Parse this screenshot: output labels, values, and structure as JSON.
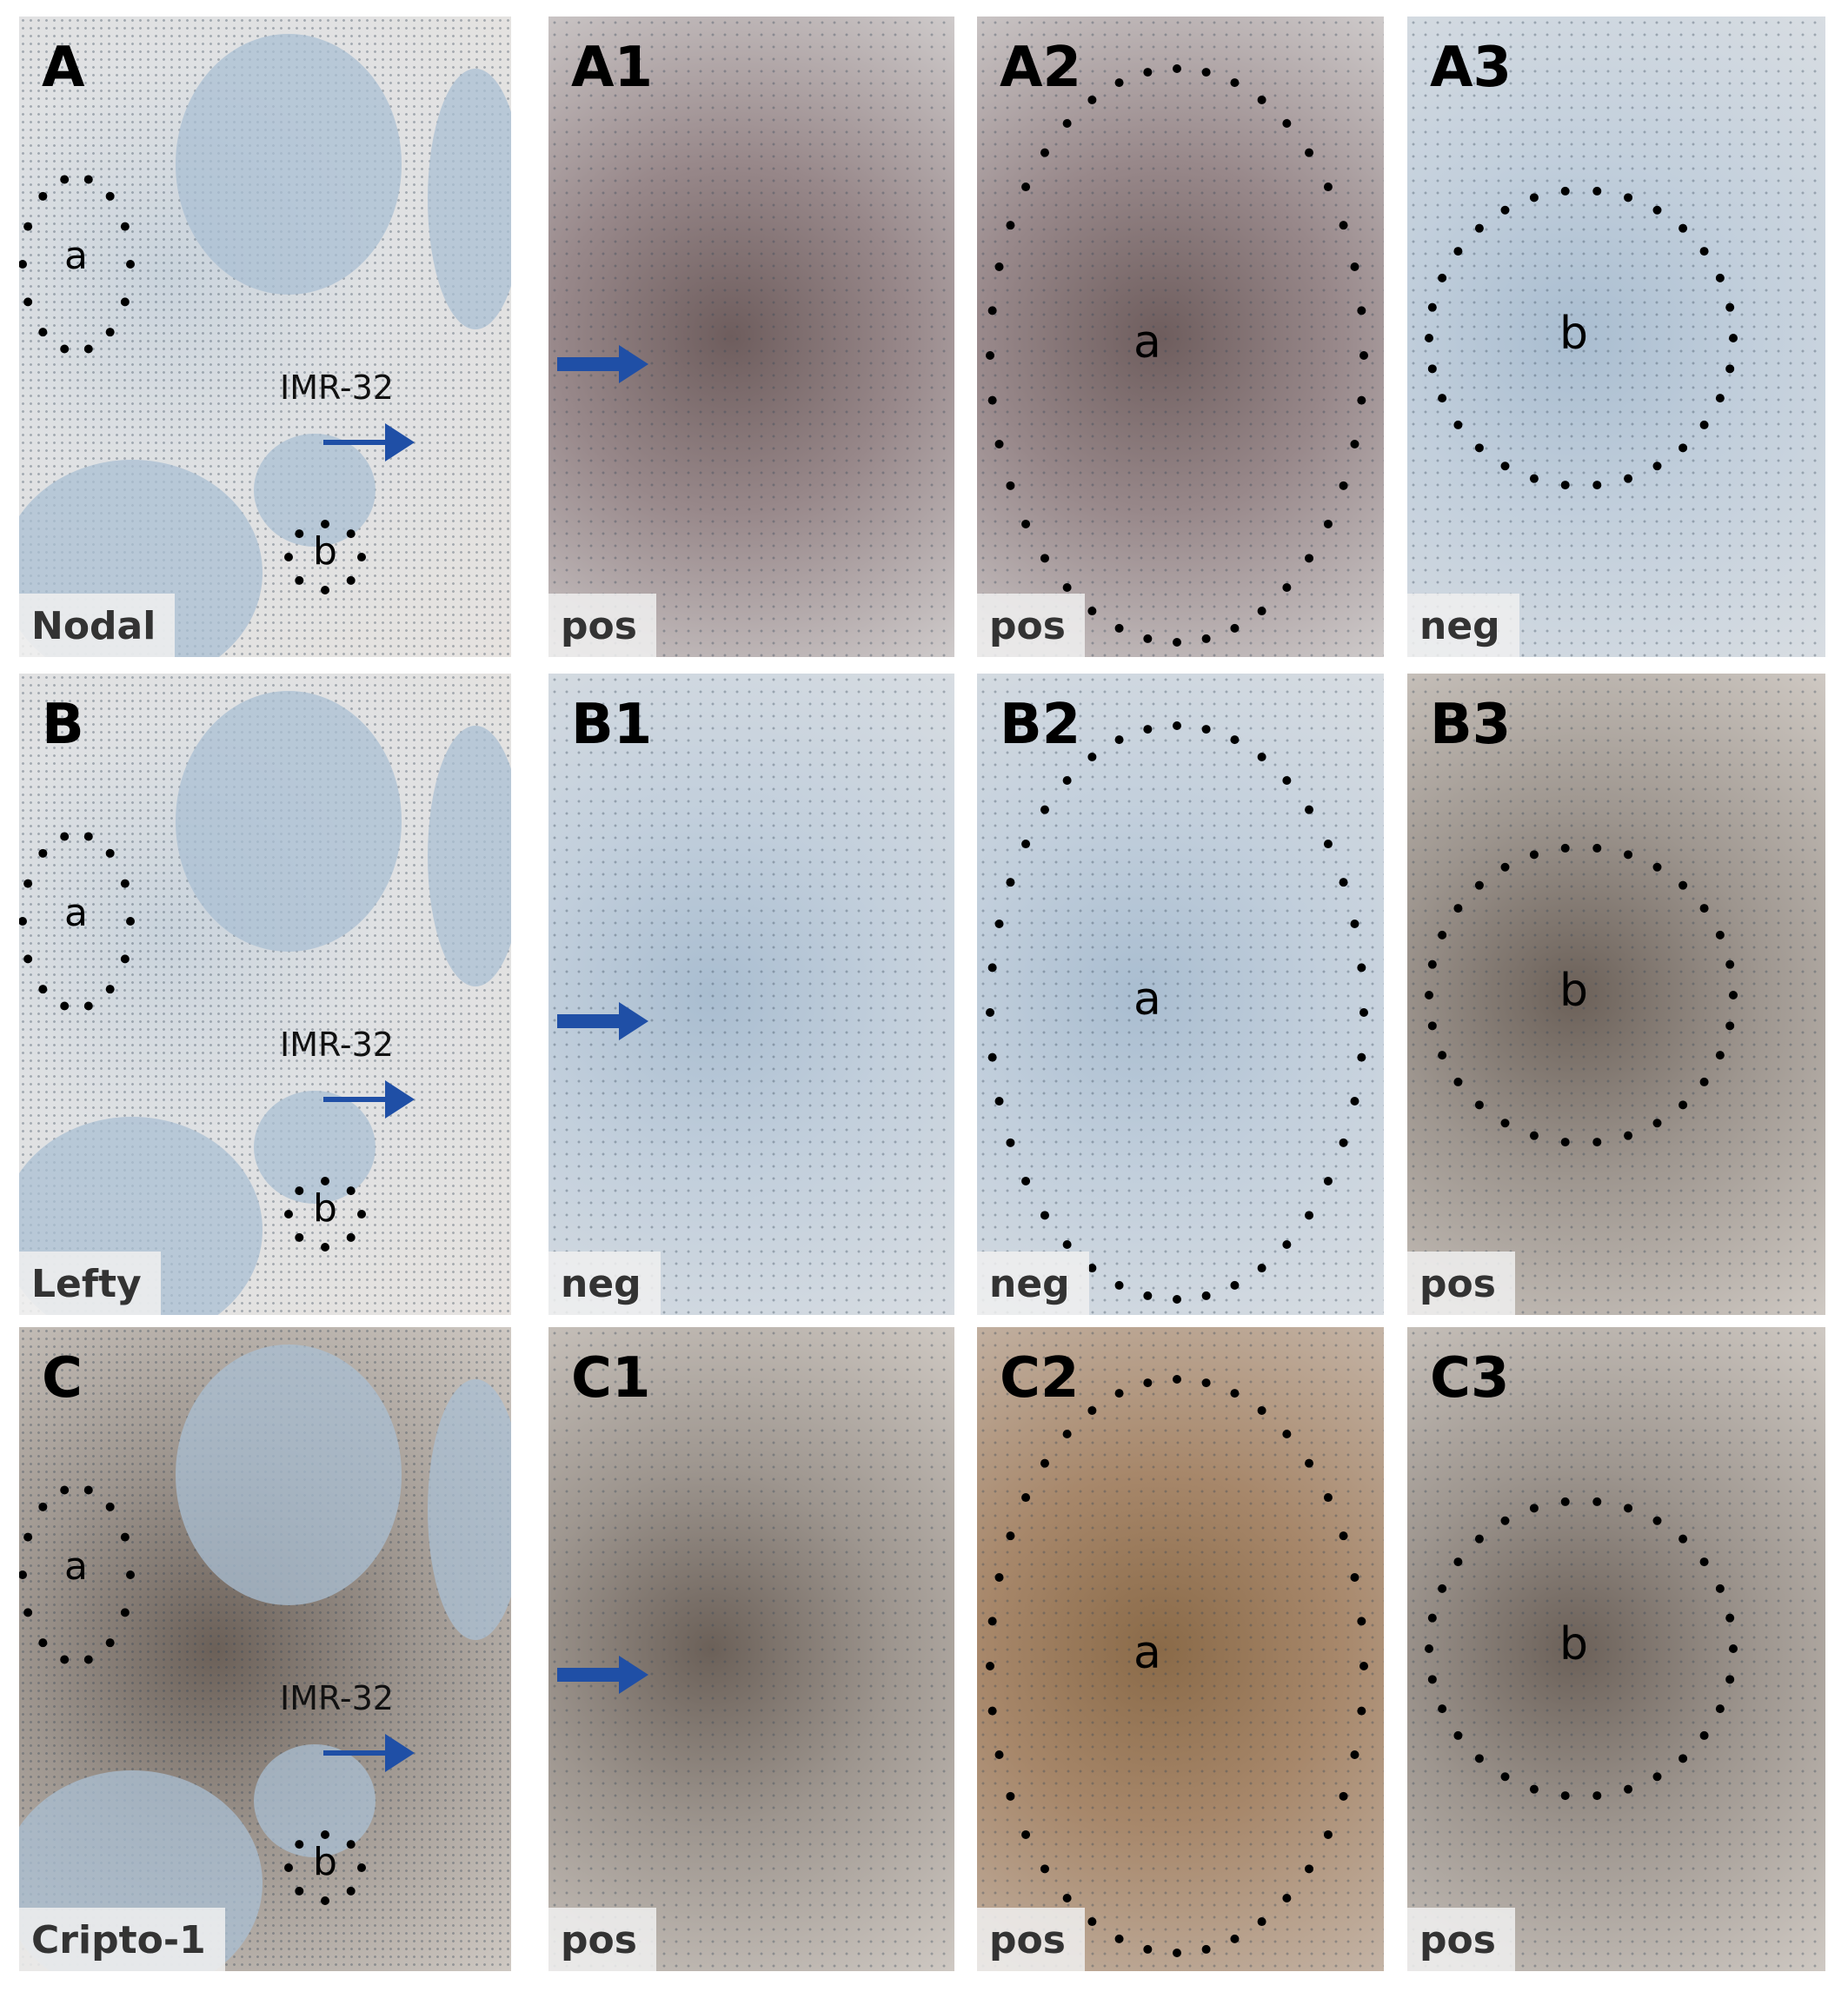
{
  "colors": {
    "arrow": "#1f4fa6",
    "nuclei": "#334455",
    "brown_stain": "#8a6a48",
    "hematoxylin": "#a9bdd0"
  },
  "rows": [
    {
      "overview": {
        "letter": "A",
        "marker": "Nodal",
        "region_a": "a",
        "region_b": "b",
        "cell_line": "IMR-32"
      },
      "zooms": [
        {
          "letter": "A1",
          "result": "pos"
        },
        {
          "letter": "A2",
          "result": "pos",
          "region": "a"
        },
        {
          "letter": "A3",
          "result": "neg",
          "region": "b"
        }
      ]
    },
    {
      "overview": {
        "letter": "B",
        "marker": "Lefty",
        "region_a": "a",
        "region_b": "b",
        "cell_line": "IMR-32"
      },
      "zooms": [
        {
          "letter": "B1",
          "result": "neg"
        },
        {
          "letter": "B2",
          "result": "neg",
          "region": "a"
        },
        {
          "letter": "B3",
          "result": "pos",
          "region": "b"
        }
      ]
    },
    {
      "overview": {
        "letter": "C",
        "marker": "Cripto-1",
        "region_a": "a",
        "region_b": "b",
        "cell_line": "IMR-32"
      },
      "zooms": [
        {
          "letter": "C1",
          "result": "pos"
        },
        {
          "letter": "C2",
          "result": "pos",
          "region": "a"
        },
        {
          "letter": "C3",
          "result": "pos",
          "region": "b"
        }
      ]
    }
  ]
}
